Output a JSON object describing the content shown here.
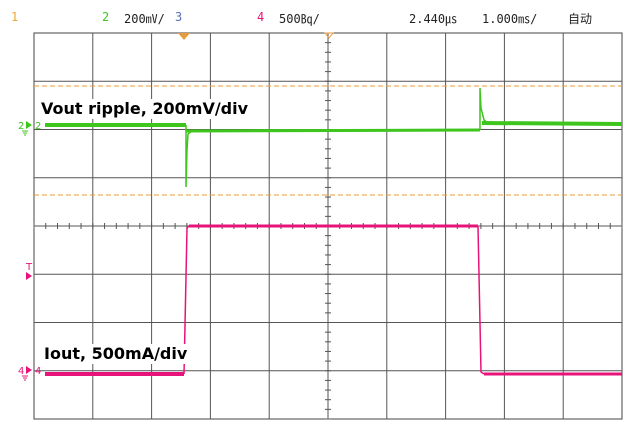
{
  "status_bar": {
    "ch1_label": "1",
    "ch2_label": "2",
    "ch2_scale": "200㎷/",
    "ch3_label": "3",
    "ch4_label": "4",
    "ch4_scale": "500㏃/",
    "trigger_time": "2.440㎲",
    "timebase": "1.000㎳/",
    "mode": "自动"
  },
  "annotations": {
    "vout": "Vout ripple, 200mV/div",
    "iout": "Iout, 500mA/div"
  },
  "markers": {
    "ch2_ground": "2",
    "ch4_ground": "4",
    "trigger_level": "T"
  },
  "colors": {
    "ch1": "#f0a830",
    "ch2": "#3ec51e",
    "ch3": "#5a6fb8",
    "ch4": "#e8137a",
    "grid": "#555555",
    "cursor": "#e89b3a"
  },
  "icons": {
    "trigger_position": "trigger-position-triangle-icon",
    "center_marker": "center-marker-icon"
  }
}
